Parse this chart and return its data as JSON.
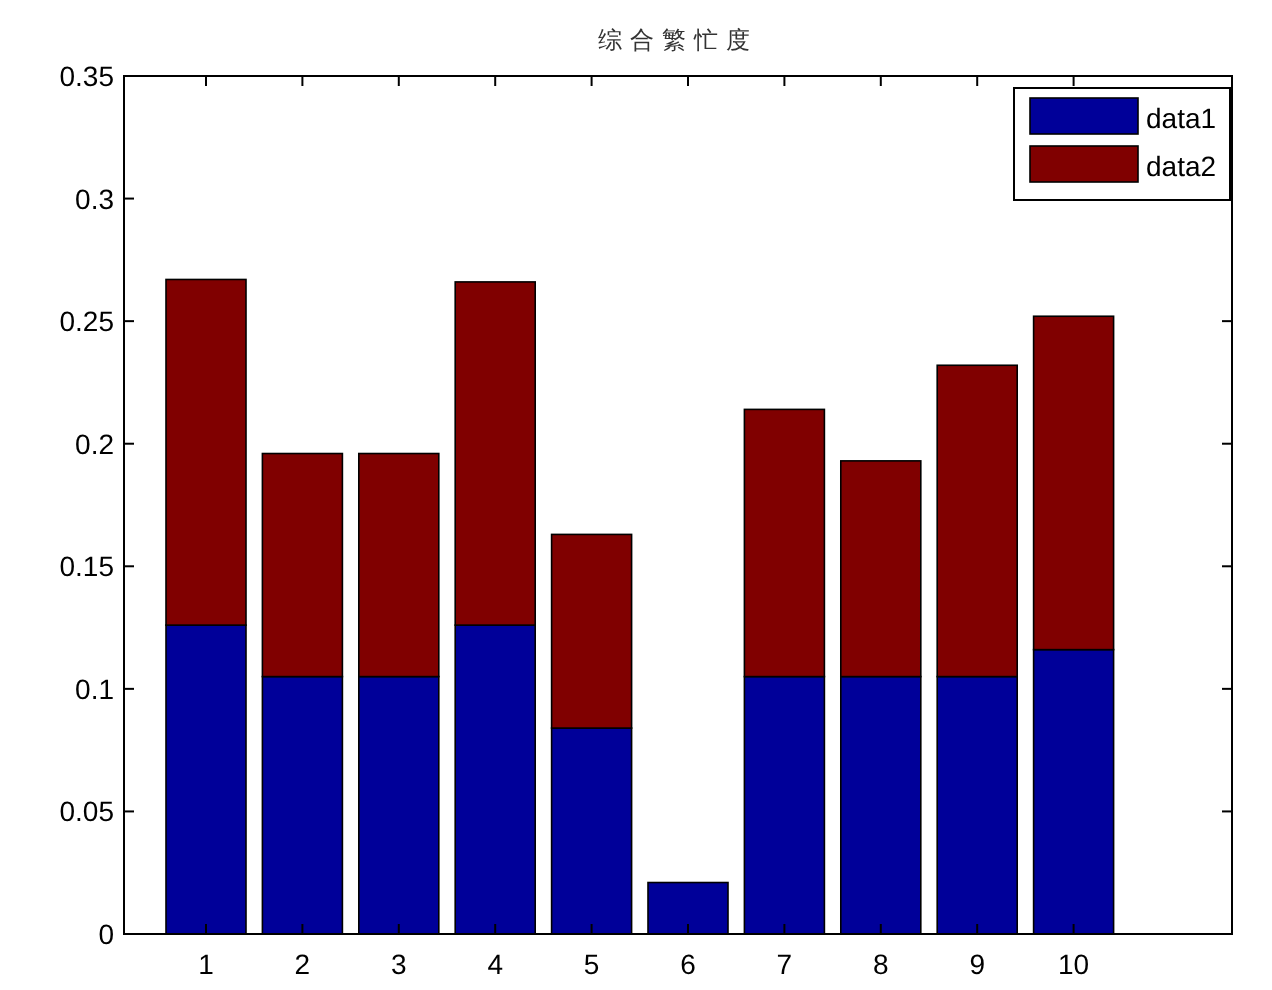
{
  "chart_data": {
    "type": "bar",
    "stacked": true,
    "title": "综合繁忙度",
    "categories": [
      "1",
      "2",
      "3",
      "4",
      "5",
      "6",
      "7",
      "8",
      "9",
      "10"
    ],
    "ylim": [
      0,
      0.35
    ],
    "yticks": [
      0,
      0.05,
      0.1,
      0.15,
      0.2,
      0.25,
      0.3,
      0.35
    ],
    "legend": "top right",
    "grid": false,
    "series": [
      {
        "name": "data1",
        "color": "#000099",
        "values": [
          0.126,
          0.105,
          0.105,
          0.126,
          0.084,
          0.021,
          0.105,
          0.105,
          0.105,
          0.116
        ]
      },
      {
        "name": "data2",
        "color": "#800000",
        "values": [
          0.141,
          0.091,
          0.091,
          0.14,
          0.079,
          0,
          0.109,
          0.088,
          0.127,
          0.136
        ]
      }
    ]
  }
}
